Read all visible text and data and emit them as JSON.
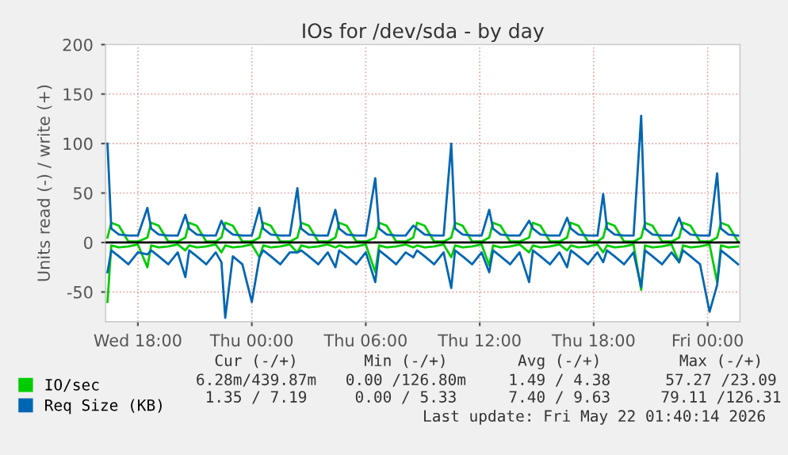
{
  "chart_data": {
    "type": "line",
    "title": "IOs for /dev/sda - by day",
    "ylabel": "Units read (-) / write (+)",
    "x": [
      "2026-05-20T16:24",
      "2026-05-20T16:36",
      "2026-05-20T17:00",
      "2026-05-20T17:30",
      "2026-05-20T18:00",
      "2026-05-20T18:30",
      "2026-05-20T18:42",
      "2026-05-20T19:06",
      "2026-05-20T19:36",
      "2026-05-20T20:06",
      "2026-05-20T20:30",
      "2026-05-20T20:42",
      "2026-05-20T21:06",
      "2026-05-20T21:36",
      "2026-05-20T22:06",
      "2026-05-20T22:24",
      "2026-05-20T22:36",
      "2026-05-20T23:00",
      "2026-05-20T23:30",
      "2026-05-21T00:00",
      "2026-05-21T00:24",
      "2026-05-21T00:36",
      "2026-05-21T01:00",
      "2026-05-21T01:30",
      "2026-05-21T02:00",
      "2026-05-21T02:24",
      "2026-05-21T02:36",
      "2026-05-21T03:00",
      "2026-05-21T03:30",
      "2026-05-21T04:00",
      "2026-05-21T04:24",
      "2026-05-21T04:36",
      "2026-05-21T05:00",
      "2026-05-21T05:30",
      "2026-05-21T06:00",
      "2026-05-21T06:30",
      "2026-05-21T06:42",
      "2026-05-21T07:06",
      "2026-05-21T07:36",
      "2026-05-21T08:06",
      "2026-05-21T08:30",
      "2026-05-21T08:42",
      "2026-05-21T09:06",
      "2026-05-21T09:36",
      "2026-05-21T10:06",
      "2026-05-21T10:30",
      "2026-05-21T10:42",
      "2026-05-21T11:06",
      "2026-05-21T11:36",
      "2026-05-21T12:06",
      "2026-05-21T12:30",
      "2026-05-21T12:42",
      "2026-05-21T13:06",
      "2026-05-21T13:36",
      "2026-05-21T14:06",
      "2026-05-21T14:36",
      "2026-05-21T14:48",
      "2026-05-21T15:12",
      "2026-05-21T15:42",
      "2026-05-21T16:12",
      "2026-05-21T16:36",
      "2026-05-21T16:48",
      "2026-05-21T17:12",
      "2026-05-21T17:42",
      "2026-05-21T18:12",
      "2026-05-21T18:30",
      "2026-05-21T18:42",
      "2026-05-21T19:06",
      "2026-05-21T19:36",
      "2026-05-21T20:06",
      "2026-05-21T20:30",
      "2026-05-21T20:42",
      "2026-05-21T21:06",
      "2026-05-21T21:36",
      "2026-05-21T22:06",
      "2026-05-21T22:30",
      "2026-05-21T22:42",
      "2026-05-21T23:06",
      "2026-05-21T23:36",
      "2026-05-22T00:06",
      "2026-05-22T00:30",
      "2026-05-22T00:42",
      "2026-05-22T01:06",
      "2026-05-22T01:36"
    ],
    "series": [
      {
        "color": "#00cc00",
        "values": [
          -60,
          -3,
          -5,
          -4,
          -2,
          -25,
          -3,
          -5,
          -4,
          -2,
          -8,
          -3,
          -5,
          -4,
          -2,
          -10,
          -3,
          -5,
          -4,
          -2,
          -15,
          -3,
          -5,
          -4,
          -2,
          -10,
          -3,
          -5,
          -4,
          -2,
          -5,
          -3,
          -5,
          -4,
          -2,
          -30,
          -3,
          -5,
          -4,
          -2,
          -5,
          -3,
          -5,
          -4,
          -2,
          -15,
          -3,
          -5,
          -4,
          -2,
          -23,
          -3,
          -5,
          -4,
          -2,
          -10,
          -3,
          -5,
          -4,
          -2,
          -8,
          -3,
          -5,
          -4,
          -2,
          -10,
          -3,
          -5,
          -4,
          -2,
          -48,
          -3,
          -5,
          -4,
          -2,
          -20,
          -3,
          -5,
          -4,
          -2,
          -40,
          -3,
          -5,
          -4
        ]
      },
      {
        "name": "IO/sec",
        "color": "#00cc00",
        "values": [
          5,
          20,
          17,
          1,
          1,
          5,
          20,
          17,
          1,
          1,
          5,
          20,
          17,
          1,
          1,
          5,
          20,
          17,
          1,
          1,
          5,
          20,
          17,
          1,
          1,
          5,
          20,
          17,
          1,
          1,
          5,
          20,
          17,
          1,
          1,
          5,
          20,
          17,
          1,
          1,
          5,
          20,
          17,
          1,
          1,
          5,
          20,
          17,
          1,
          1,
          5,
          20,
          17,
          1,
          1,
          5,
          20,
          17,
          1,
          1,
          5,
          20,
          17,
          1,
          1,
          5,
          20,
          17,
          1,
          1,
          5,
          20,
          17,
          1,
          1,
          5,
          20,
          17,
          1,
          1,
          5,
          20,
          17,
          1
        ]
      },
      {
        "color": "#0066b3",
        "values": [
          -30,
          -8,
          -14,
          -22,
          -10,
          -12,
          -8,
          -14,
          -22,
          -10,
          -35,
          -8,
          -14,
          -22,
          -10,
          -20,
          -76,
          -14,
          -22,
          -60,
          -15,
          -8,
          -14,
          -22,
          -10,
          -10,
          -8,
          -14,
          -22,
          -10,
          -25,
          -8,
          -14,
          -22,
          -10,
          -40,
          -8,
          -14,
          -22,
          -10,
          -15,
          -8,
          -14,
          -22,
          -10,
          -46,
          -8,
          -14,
          -22,
          -10,
          -30,
          -8,
          -14,
          -22,
          -10,
          -40,
          -8,
          -14,
          -22,
          -10,
          -25,
          -8,
          -14,
          -22,
          -10,
          -20,
          -8,
          -14,
          -22,
          -10,
          -45,
          -8,
          -14,
          -22,
          -10,
          -20,
          -8,
          -14,
          -22,
          -70,
          -43,
          -8,
          -14,
          -22
        ]
      },
      {
        "name": "Req Size (KB)",
        "color": "#0066b3",
        "values": [
          100,
          14,
          8,
          7,
          7,
          35,
          14,
          8,
          7,
          7,
          28,
          14,
          8,
          7,
          7,
          22,
          14,
          8,
          7,
          7,
          35,
          14,
          8,
          7,
          7,
          55,
          14,
          8,
          7,
          7,
          33,
          14,
          8,
          7,
          7,
          65,
          14,
          8,
          7,
          7,
          17,
          14,
          8,
          7,
          7,
          100,
          14,
          8,
          7,
          7,
          33,
          14,
          8,
          7,
          7,
          22,
          14,
          8,
          7,
          7,
          25,
          14,
          8,
          7,
          7,
          49,
          14,
          8,
          7,
          7,
          128,
          14,
          8,
          7,
          7,
          25,
          14,
          8,
          7,
          7,
          70,
          14,
          8,
          7
        ]
      }
    ],
    "xlim": [
      "2026-05-20T16:18",
      "2026-05-22T01:42"
    ],
    "xticks": [
      {
        "value": "2026-05-20T18:00",
        "label": "Wed 18:00"
      },
      {
        "value": "2026-05-21T00:00",
        "label": "Thu 00:00"
      },
      {
        "value": "2026-05-21T06:00",
        "label": "Thu 06:00"
      },
      {
        "value": "2026-05-21T12:00",
        "label": "Thu 12:00"
      },
      {
        "value": "2026-05-21T18:00",
        "label": "Thu 18:00"
      },
      {
        "value": "2026-05-22T00:00",
        "label": "Fri 00:00"
      }
    ],
    "ylim": [
      -80,
      200
    ],
    "yticks": [
      -50,
      0,
      50,
      100,
      150,
      200
    ],
    "ref_lines": [
      {
        "axis": "y",
        "value": 0,
        "color": "#000000"
      }
    ],
    "grid": true,
    "legend": "bottom left",
    "marker": "none",
    "line_style": "solid",
    "annotations": [
      "Cur (-/+)",
      "Min (-/+)",
      "Avg (-/+)",
      "Max (-/+)",
      "6.28m/439.87m",
      "0.00 /126.80m",
      "1.49 / 4.38",
      "57.27 /23.09",
      "1.35 / 7.19",
      "0.00 / 5.33",
      "7.40 / 9.63",
      "79.11 /126.31",
      "Last update: Fri May 22 01:40:14 2026"
    ]
  }
}
